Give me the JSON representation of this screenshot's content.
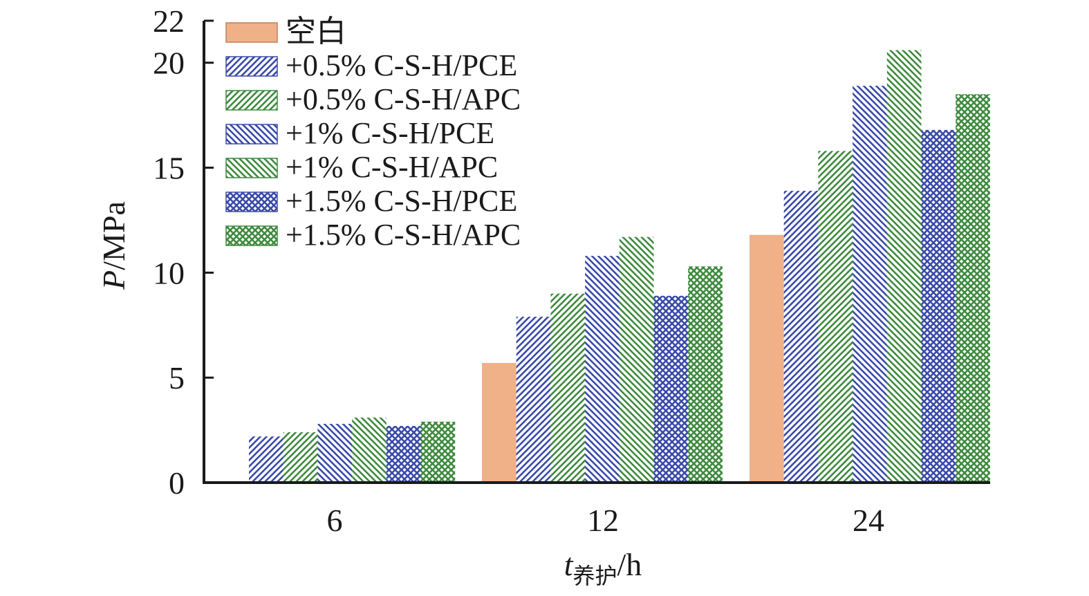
{
  "chart_data": {
    "type": "bar",
    "ylabel": {
      "italic": "P",
      "rest": "/MPa"
    },
    "xlabel": {
      "italic": "t",
      "sub": "养护",
      "rest": "/h"
    },
    "ylim": [
      0,
      22
    ],
    "yticks": [
      "0",
      "5",
      "10",
      "15",
      "20",
      "22"
    ],
    "categories": [
      "6",
      "12",
      "24"
    ],
    "legend_position": "top-left",
    "series": [
      {
        "name": "空白",
        "values": [
          0,
          5.7,
          11.8
        ],
        "color": "#f0b088",
        "pattern": "solid"
      },
      {
        "name": "+0.5% C-S-H/PCE",
        "values": [
          2.2,
          7.9,
          13.9
        ],
        "color": "#3a4aa8",
        "pattern": "diag-right"
      },
      {
        "name": "+0.5% C-S-H/APC",
        "values": [
          2.4,
          9.0,
          15.8
        ],
        "color": "#3f8a3f",
        "pattern": "diag-right"
      },
      {
        "name": "+1% C-S-H/PCE",
        "values": [
          2.8,
          10.8,
          18.9
        ],
        "color": "#3a4aa8",
        "pattern": "diag-left"
      },
      {
        "name": "+1% C-S-H/APC",
        "values": [
          3.1,
          11.7,
          20.6
        ],
        "color": "#3f8a3f",
        "pattern": "diag-left"
      },
      {
        "name": "+1.5% C-S-H/PCE",
        "values": [
          2.7,
          8.9,
          16.8
        ],
        "color": "#3a4aa8",
        "pattern": "cross"
      },
      {
        "name": "+1.5% C-S-H/APC",
        "values": [
          2.9,
          10.3,
          18.5
        ],
        "color": "#3f8a3f",
        "pattern": "cross"
      }
    ]
  }
}
